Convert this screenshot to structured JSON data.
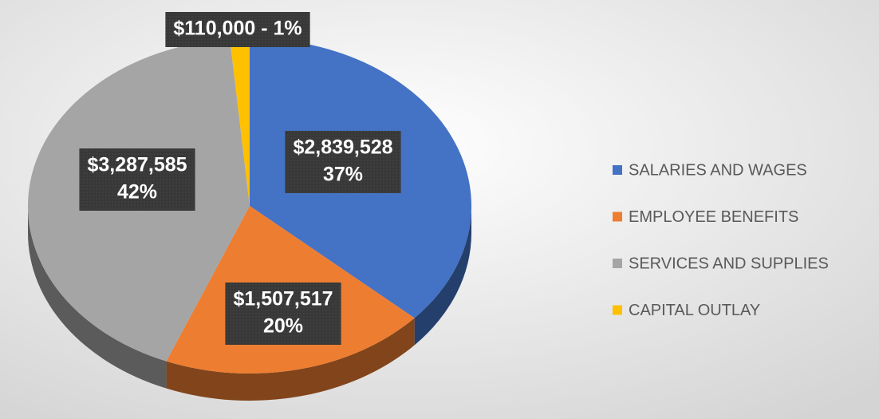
{
  "chart_data": {
    "type": "pie",
    "categories": [
      "SALARIES AND WAGES",
      "EMPLOYEE BENEFITS",
      "SERVICES AND SUPPLIES",
      "CAPITAL OUTLAY"
    ],
    "values": [
      2839528,
      1507517,
      3287585,
      110000
    ],
    "value_labels": [
      [
        "$2,839,528",
        "37%"
      ],
      [
        "$1,507,517",
        "20%"
      ],
      [
        "$3,287,585",
        "42%"
      ],
      [
        "$110,000 - 1%"
      ]
    ],
    "colors": [
      "#4472c4",
      "#ed7d31",
      "#a5a5a5",
      "#ffc000"
    ],
    "legend": "right"
  }
}
